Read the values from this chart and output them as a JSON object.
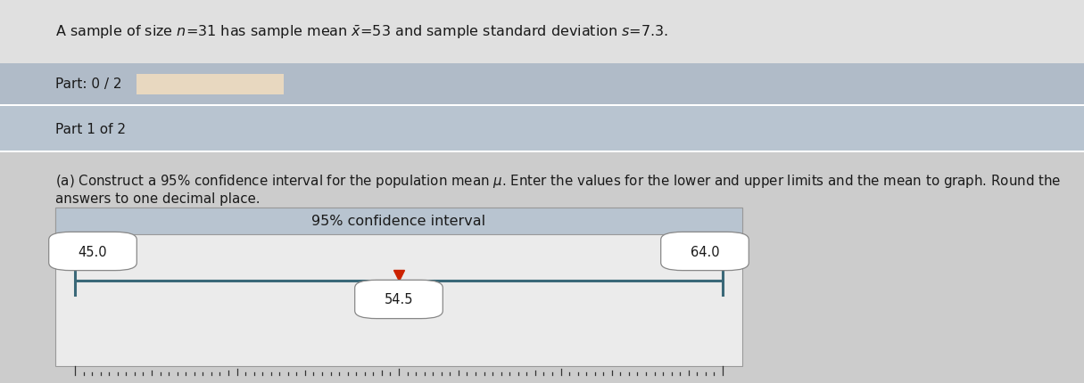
{
  "title_line": "A sample of size $n$=31 has sample mean $\\bar{x}$=53 and sample standard deviation $s$=7.3.",
  "part_label": "Part: 0 / 2",
  "part1_label": "Part 1 of 2",
  "instr1": "(a) Construct a 95% confidence interval for the population mean $\\mu$. Enter the values for the lower and upper limits and the mean to graph. Round the",
  "instr2": "answers to one decimal place.",
  "ci_title": "95% confidence interval",
  "lower": 45.0,
  "upper": 64.0,
  "mean": 54.5,
  "axis_min": 45.0,
  "axis_max": 64.0,
  "bg_top": "#e0e0e0",
  "bg_part": "#b0bbc8",
  "bg_part1": "#b8c4d0",
  "bg_content": "#cccccc",
  "bg_ci_box": "#ebebeb",
  "bg_ci_header": "#b8c4d0",
  "line_color": "#3a6878",
  "marker_color": "#cc2200",
  "text_color": "#1a1a1a",
  "input_box_color": "#e8d8c0",
  "num_ticks": 76
}
